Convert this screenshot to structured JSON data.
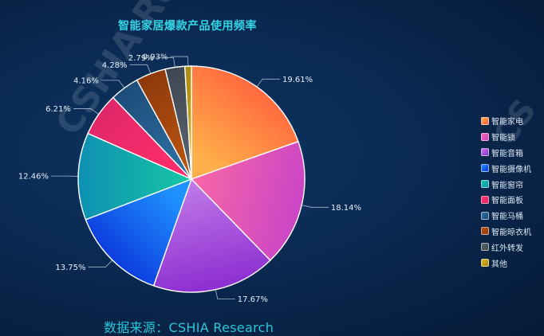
{
  "title": "智能家居爆款产品使用频率",
  "source": "数据来源：CSHIA Research",
  "watermark": "CSHIA Research",
  "chart_data": {
    "type": "pie",
    "title": "智能家居爆款产品使用频率",
    "legend_position": "right",
    "slices": [
      {
        "label": "智能家电",
        "value": 19.61,
        "display": "19.61%",
        "color": "#ff7a45"
      },
      {
        "label": "智能锁",
        "value": 18.14,
        "display": "18.14%",
        "color": "#f05aa0"
      },
      {
        "label": "智能音箱",
        "value": 17.67,
        "display": "17.67%",
        "color": "#9a36d0"
      },
      {
        "label": "智能摄像机",
        "value": 13.75,
        "display": "13.75%",
        "color": "#0a62ee"
      },
      {
        "label": "智能窗帘",
        "value": 12.46,
        "display": "12.46%",
        "color": "#13b9a8"
      },
      {
        "label": "智能面板",
        "value": 6.21,
        "display": "6.21%",
        "color": "#f42a63"
      },
      {
        "label": "智能马桶",
        "value": 4.16,
        "display": "4.16%",
        "color": "#255f8f"
      },
      {
        "label": "智能晾衣机",
        "value": 4.28,
        "display": "4.28%",
        "color": "#a9470e"
      },
      {
        "label": "红外转发",
        "value": 2.79,
        "display": "2.79%",
        "color": "#4d5763"
      },
      {
        "label": "其他",
        "value": 0.93,
        "display": "0.93%",
        "color": "#c4a51a"
      }
    ]
  }
}
